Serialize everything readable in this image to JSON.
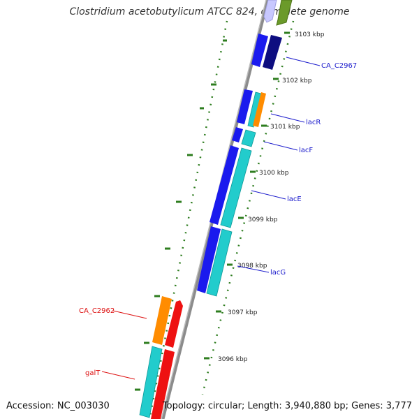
{
  "title": "Clostridium acetobutylicum ATCC 824, complete genome",
  "accession": "Accession: NC_003030",
  "topology": "Topology: circular; Length: 3,940,880 bp; Genes: 3,777",
  "colors": {
    "backbone": "#8c8c8c",
    "tick": "#2e7d1f",
    "forward_label": "#1a1acc",
    "reverse_label": "#dd1111",
    "blue": "#1a1aee",
    "navy": "#0d0d80",
    "cyan": "#22cccc",
    "orange": "#ff8c00",
    "red": "#ee1111",
    "olive": "#6b9a2a",
    "lavender": "#c8c8ff"
  },
  "ticks": [
    {
      "label": "3103 kbp"
    },
    {
      "label": "3102 kbp"
    },
    {
      "label": "3101 kbp"
    },
    {
      "label": "3100 kbp"
    },
    {
      "label": "3099 kbp"
    },
    {
      "label": "3098 kbp"
    },
    {
      "label": "3097 kbp"
    },
    {
      "label": "3096 kbp"
    }
  ],
  "gene_labels": [
    {
      "name": "CA_C2967",
      "strand": "forward"
    },
    {
      "name": "lacR",
      "strand": "forward"
    },
    {
      "name": "lacF",
      "strand": "forward"
    },
    {
      "name": "lacE",
      "strand": "forward"
    },
    {
      "name": "lacG",
      "strand": "forward"
    },
    {
      "name": "CA_C2962",
      "strand": "reverse"
    },
    {
      "name": "galT",
      "strand": "reverse"
    }
  ]
}
